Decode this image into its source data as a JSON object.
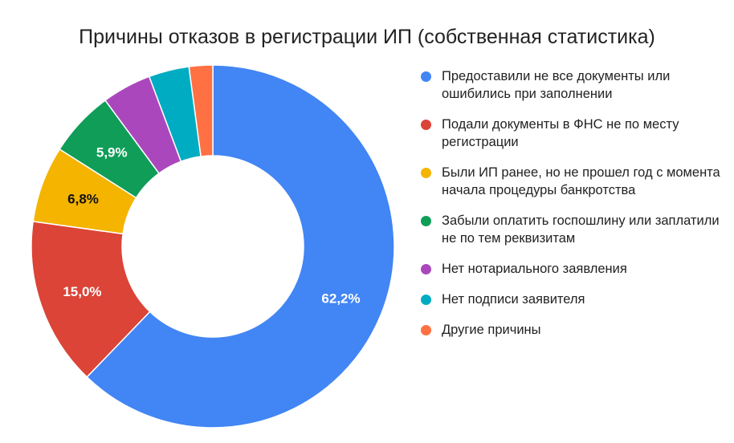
{
  "chart_data": {
    "type": "pie",
    "title": "Причины отказов в регистрации ИП (собственная статистика)",
    "donut": true,
    "legend_position": "right",
    "categories": [
      "Предоставили не все документы или ошибились при заполнении",
      "Подали документы в ФНС не по месту регистрации",
      "Были ИП ранее, но не прошел год с момента начала процедуры банкротства",
      "Забыли оплатить госпошлину или заплатили не по тем реквизитам",
      "Нет нотариального заявления",
      "Нет подписи заявителя",
      "Другие причины"
    ],
    "values": [
      62.2,
      15.0,
      6.8,
      5.9,
      4.4,
      3.6,
      2.1
    ],
    "labels": [
      "62,2%",
      "15,0%",
      "6,8%",
      "5,9%",
      "",
      "",
      ""
    ],
    "colors": [
      "#4285F4",
      "#DB4437",
      "#F4B400",
      "#0F9D58",
      "#AB47BC",
      "#00ACC1",
      "#FF7043"
    ],
    "label_colors": [
      "#ffffff",
      "#ffffff",
      "#111111",
      "#ffffff",
      "#ffffff",
      "#ffffff",
      "#ffffff"
    ]
  }
}
